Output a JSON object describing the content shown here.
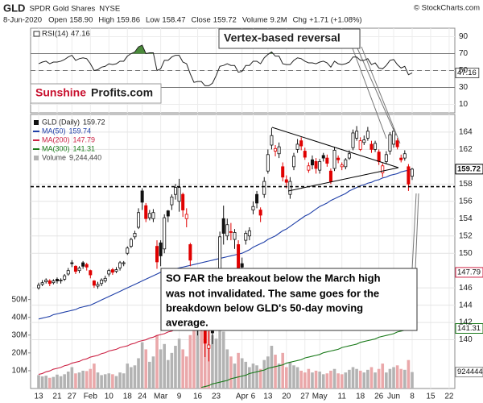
{
  "chart_data": {
    "type": "candlestick",
    "header": {
      "symbol": "GLD",
      "name": "SPDR Gold Shares",
      "exchange": "NYSE",
      "copyright": "© StockCharts.com",
      "date": "8-Jun-2020",
      "fields": [
        {
          "label": "Open",
          "value": "158.90"
        },
        {
          "label": "High",
          "value": "159.86"
        },
        {
          "label": "Low",
          "value": "158.47"
        },
        {
          "label": "Close",
          "value": "159.72"
        },
        {
          "label": "Volume",
          "value": "9.2M"
        },
        {
          "label": "Chg",
          "value": "+1.71 (+1.08%)"
        }
      ]
    },
    "legend_label": "GLD (Daily)",
    "categories": [
      "13",
      null,
      null,
      null,
      null,
      "21",
      null,
      null,
      null,
      "27",
      null,
      null,
      null,
      null,
      "Feb",
      null,
      null,
      null,
      null,
      "10",
      null,
      null,
      null,
      null,
      "18",
      null,
      null,
      null,
      "24",
      null,
      null,
      null,
      null,
      "Mar",
      null,
      null,
      null,
      null,
      "9",
      null,
      null,
      null,
      null,
      "16",
      null,
      null,
      null,
      null,
      "23",
      null,
      null,
      null,
      null,
      null,
      null,
      "Apr",
      null,
      null,
      "6",
      null,
      null,
      null,
      "13",
      null,
      null,
      null,
      null,
      "20",
      null,
      null,
      null,
      null,
      "27",
      null,
      null,
      null,
      "May",
      null,
      null,
      null,
      null,
      null,
      "11",
      null,
      null,
      null,
      null,
      "18",
      null,
      null,
      null,
      null,
      "26",
      null,
      null,
      null,
      "Jun",
      null,
      null,
      null,
      null,
      "8",
      null,
      null,
      null,
      null,
      "15",
      null,
      null,
      null,
      null,
      "22"
    ],
    "open": [
      146.0,
      146.4,
      146.7,
      146.8,
      146.6,
      147.0,
      146.8,
      147.0,
      147.6,
      148.9,
      148.5,
      148.0,
      148.9,
      148.7,
      148.0,
      146.8,
      146.2,
      146.5,
      146.8,
      147.6,
      148.1,
      147.9,
      148.3,
      148.8,
      150.0,
      150.8,
      151.9,
      153.0,
      157.2,
      155.5,
      154.1,
      154.0,
      150.8,
      151.2,
      150.5,
      154.9,
      155.6,
      156.8,
      156.0,
      156.8,
      154.0,
      151.0,
      147.0,
      142.0,
      143.0,
      141.9,
      139.0,
      141.8,
      144.0,
      147.8,
      154.0,
      152.0,
      152.5,
      151.6,
      151.0,
      148.8,
      151.5,
      152.0,
      155.0,
      156.8,
      155.0,
      156.8,
      159.5,
      162.5,
      161.8,
      161.5,
      160.0,
      158.5,
      156.8,
      160.0,
      162.0,
      163.0,
      161.8,
      159.6,
      160.8,
      160.6,
      159.6,
      161.3,
      161.0,
      159.5,
      159.8,
      161.0,
      160.0,
      160.0,
      161.0,
      162.2,
      163.3,
      162.0,
      162.8,
      163.3,
      162.6,
      162.0,
      161.7,
      159.3,
      160.6,
      161.8,
      162.6,
      163.0,
      161.0,
      161.0,
      160.0,
      158.9,
      null,
      null,
      null,
      null,
      null,
      null,
      null,
      null,
      null,
      null
    ],
    "high": [
      146.6,
      146.9,
      147.1,
      147.0,
      147.0,
      147.2,
      147.1,
      147.6,
      148.3,
      149.2,
      148.6,
      148.5,
      149.1,
      148.9,
      148.1,
      146.9,
      146.7,
      147.1,
      147.4,
      148.2,
      148.3,
      148.4,
      149.1,
      149.1,
      150.8,
      151.8,
      152.6,
      155.2,
      157.5,
      155.8,
      155.0,
      155.1,
      151.5,
      151.5,
      154.5,
      155.0,
      156.8,
      158.0,
      158.6,
      157.0,
      155.2,
      151.2,
      147.5,
      146.0,
      146.5,
      142.5,
      141.0,
      143.0,
      146.0,
      152.5,
      155.5,
      154.0,
      153.5,
      152.8,
      151.5,
      149.5,
      152.6,
      153.0,
      156.0,
      157.2,
      155.3,
      158.8,
      162.0,
      164.5,
      162.5,
      162.8,
      160.5,
      159.0,
      158.8,
      161.6,
      163.2,
      163.4,
      162.2,
      160.5,
      161.3,
      161.0,
      160.9,
      161.6,
      161.4,
      159.8,
      162.3,
      161.3,
      160.5,
      161.0,
      161.9,
      164.3,
      164.7,
      163.4,
      163.6,
      164.6,
      163.0,
      163.0,
      162.0,
      160.4,
      161.8,
      164.0,
      164.5,
      163.3,
      161.4,
      161.9,
      160.3,
      159.86,
      null,
      null,
      null,
      null,
      null,
      null,
      null,
      null,
      null,
      null
    ],
    "low": [
      145.8,
      146.2,
      146.5,
      146.2,
      146.4,
      146.5,
      146.5,
      146.8,
      147.4,
      148.4,
      147.6,
      147.7,
      148.2,
      148.0,
      147.1,
      146.0,
      145.9,
      146.2,
      146.6,
      147.3,
      147.5,
      147.7,
      148.0,
      148.5,
      149.8,
      150.6,
      151.6,
      152.8,
      155.0,
      153.6,
      153.8,
      153.6,
      148.2,
      148.5,
      150.0,
      153.6,
      155.0,
      156.2,
      154.8,
      154.2,
      153.0,
      148.5,
      141.5,
      140.5,
      141.0,
      138.0,
      137.5,
      139.5,
      142.5,
      147.0,
      151.0,
      151.5,
      151.5,
      150.5,
      147.5,
      147.5,
      151.0,
      151.5,
      154.5,
      155.2,
      153.6,
      156.4,
      159.2,
      162.0,
      161.2,
      161.0,
      158.3,
      157.5,
      156.3,
      159.6,
      161.6,
      161.9,
      160.8,
      159.3,
      159.7,
      159.2,
      159.2,
      160.6,
      160.0,
      158.0,
      159.5,
      160.4,
      159.6,
      159.7,
      160.8,
      161.9,
      163.0,
      161.8,
      162.5,
      163.0,
      161.6,
      161.7,
      160.2,
      158.8,
      160.3,
      161.4,
      162.2,
      162.0,
      160.5,
      160.7,
      157.2,
      158.47,
      null,
      null,
      null,
      null,
      null,
      null,
      null,
      null,
      null,
      null
    ],
    "close": [
      146.3,
      146.6,
      146.9,
      146.5,
      146.8,
      146.8,
      146.9,
      147.4,
      148.0,
      148.8,
      147.9,
      148.3,
      148.5,
      148.4,
      147.5,
      146.3,
      146.4,
      146.9,
      147.1,
      148.0,
      147.8,
      148.1,
      148.9,
      148.9,
      150.6,
      151.6,
      152.3,
      154.7,
      155.9,
      154.0,
      154.6,
      154.7,
      149.0,
      149.7,
      154.1,
      154.3,
      156.5,
      157.6,
      157.6,
      155.0,
      154.5,
      149.2,
      143.6,
      143.7,
      143.6,
      139.6,
      139.4,
      140.8,
      145.2,
      151.9,
      152.3,
      153.3,
      152.4,
      152.4,
      148.1,
      148.4,
      152.3,
      152.6,
      155.4,
      155.8,
      154.4,
      158.3,
      161.4,
      163.6,
      162.1,
      162.3,
      158.8,
      158.2,
      158.3,
      161.2,
      162.6,
      162.4,
      161.1,
      160.1,
      160.2,
      159.8,
      160.6,
      161.0,
      160.4,
      158.3,
      161.9,
      160.8,
      160.2,
      160.8,
      161.5,
      163.9,
      164.1,
      163.0,
      163.1,
      164.1,
      162.0,
      162.7,
      160.6,
      160.1,
      161.4,
      163.7,
      164.1,
      162.3,
      160.8,
      161.5,
      158.0,
      159.72,
      null,
      null,
      null,
      null,
      null,
      null,
      null,
      null,
      null,
      null
    ],
    "up_color": "#111111",
    "down_color": "#e00000",
    "ylim": [
      134.37,
      166.04
    ],
    "yticks": [
      164,
      162,
      158,
      156,
      154,
      152,
      150,
      146,
      144,
      142,
      140
    ],
    "grid": true,
    "support_level": 157.7,
    "series": [
      {
        "name": "MA(50)",
        "color": "#1f3fa8",
        "values": [
          142.4,
          142.5,
          142.6,
          142.7,
          142.9,
          143.0,
          143.1,
          143.2,
          143.3,
          143.4,
          143.5,
          143.7,
          143.8,
          143.9,
          144.0,
          144.2,
          144.4,
          144.6,
          144.8,
          145.0,
          145.2,
          145.4,
          145.6,
          145.8,
          146.0,
          146.2,
          146.4,
          146.6,
          146.8,
          147.0,
          147.2,
          147.4,
          147.6,
          147.8,
          147.9,
          148.0,
          148.1,
          148.2,
          148.3,
          148.4,
          148.5,
          148.6,
          148.7,
          148.8,
          148.9,
          149.0,
          149.1,
          149.2,
          149.3,
          149.4,
          149.5,
          149.6,
          149.7,
          149.8,
          149.9,
          150.0,
          150.2,
          150.4,
          150.7,
          150.9,
          151.1,
          151.3,
          151.6,
          151.8,
          152.0,
          152.3,
          152.6,
          152.8,
          153.1,
          153.4,
          153.7,
          154.0,
          154.3,
          154.5,
          154.8,
          155.1,
          155.4,
          155.6,
          155.8,
          156.1,
          156.3,
          156.5,
          156.7,
          156.9,
          157.2,
          157.4,
          157.6,
          157.8,
          157.9,
          158.1,
          158.2,
          158.4,
          158.5,
          158.7,
          158.8,
          159.0,
          159.1,
          159.2,
          159.4,
          159.5,
          159.6,
          159.74,
          null,
          null,
          null,
          null,
          null,
          null,
          null,
          null,
          null,
          null
        ]
      },
      {
        "name": "MA(200)",
        "color": "#cc2244",
        "values": [
          136.0,
          136.1,
          136.3,
          136.4,
          136.6,
          136.7,
          136.8,
          137.0,
          137.1,
          137.3,
          137.4,
          137.5,
          137.7,
          137.8,
          138.0,
          138.1,
          138.2,
          138.4,
          138.5,
          138.7,
          138.8,
          138.9,
          139.1,
          139.2,
          139.3,
          139.5,
          139.6,
          139.8,
          139.9,
          140.0,
          140.2,
          140.3,
          140.5,
          140.6,
          140.7,
          140.9,
          141.0,
          141.2,
          141.3,
          141.4,
          141.6,
          141.7,
          141.9,
          142.0,
          142.1,
          142.2,
          142.3,
          142.4,
          142.5,
          142.6,
          142.7,
          142.8,
          142.9,
          143.0,
          143.1,
          143.2,
          143.3,
          143.4,
          143.5,
          143.6,
          143.7,
          143.8,
          143.9,
          144.0,
          144.1,
          144.2,
          144.3,
          144.4,
          144.5,
          144.6,
          144.7,
          144.8,
          144.9,
          145.0,
          145.1,
          145.2,
          145.3,
          145.4,
          145.5,
          145.6,
          145.7,
          145.8,
          145.9,
          146.0,
          146.1,
          146.2,
          146.3,
          146.4,
          146.5,
          146.6,
          146.7,
          146.8,
          146.9,
          147.0,
          147.1,
          147.2,
          147.3,
          147.4,
          147.5,
          147.6,
          147.7,
          147.79,
          null,
          null,
          null,
          null,
          null,
          null,
          null,
          null,
          null,
          null
        ]
      },
      {
        "name": "MA(300)",
        "color": "#1a7a1a",
        "values": [
          null,
          null,
          null,
          null,
          null,
          null,
          null,
          null,
          null,
          null,
          null,
          null,
          null,
          null,
          null,
          null,
          null,
          null,
          null,
          null,
          null,
          null,
          null,
          null,
          null,
          null,
          null,
          null,
          null,
          null,
          null,
          null,
          null,
          null,
          null,
          null,
          null,
          null,
          null,
          null,
          null,
          null,
          null,
          null,
          134.5,
          134.6,
          134.7,
          134.9,
          135.0,
          135.1,
          135.2,
          135.3,
          135.5,
          135.6,
          135.7,
          135.8,
          135.9,
          136.1,
          136.2,
          136.3,
          136.4,
          136.5,
          136.7,
          136.8,
          136.9,
          137.0,
          137.1,
          137.3,
          137.4,
          137.5,
          137.6,
          137.7,
          137.9,
          138.0,
          138.1,
          138.2,
          138.3,
          138.5,
          138.6,
          138.7,
          138.8,
          138.9,
          139.1,
          139.2,
          139.3,
          139.4,
          139.5,
          139.7,
          139.8,
          139.9,
          140.0,
          140.1,
          140.3,
          140.4,
          140.5,
          140.6,
          140.7,
          140.9,
          141.0,
          141.1,
          141.2,
          141.31,
          null,
          null,
          null,
          null,
          null,
          null,
          null,
          null,
          null,
          null
        ]
      }
    ],
    "volume": {
      "name": "Volume",
      "up_color": "#b3b3b3",
      "down_color": "#eaa8aa",
      "legend_value": {
        "value": 9244440,
        "label": "9,244,440"
      },
      "values": [
        7500000,
        6800000,
        7200000,
        6000000,
        6500000,
        7800000,
        6900000,
        8000000,
        9500000,
        12000000,
        8500000,
        9000000,
        10000000,
        9800000,
        11000000,
        14000000,
        9000000,
        7500000,
        8000000,
        8500000,
        8000000,
        7000000,
        9000000,
        8500000,
        14000000,
        12000000,
        13000000,
        17000000,
        26000000,
        22000000,
        15000000,
        18000000,
        30000000,
        22000000,
        25000000,
        16000000,
        20000000,
        24000000,
        28000000,
        22000000,
        18000000,
        30000000,
        45000000,
        35000000,
        40000000,
        52000000,
        35000000,
        30000000,
        28000000,
        40000000,
        32000000,
        22000000,
        18000000,
        14000000,
        20000000,
        17000000,
        15000000,
        12000000,
        14000000,
        13000000,
        11000000,
        16000000,
        18000000,
        24000000,
        19000000,
        14000000,
        20000000,
        12000000,
        15000000,
        13000000,
        12000000,
        10000000,
        9000000,
        11000000,
        9000000,
        10000000,
        9500000,
        8000000,
        8500000,
        10000000,
        11000000,
        8500000,
        8000000,
        9000000,
        10500000,
        12000000,
        11000000,
        10000000,
        9000000,
        10500000,
        12000000,
        9000000,
        11000000,
        14000000,
        9000000,
        11000000,
        12000000,
        13000000,
        11000000,
        10500000,
        16000000,
        9244440,
        null,
        null,
        null,
        null,
        null,
        null,
        null,
        null,
        null,
        null
      ],
      "ylim": [
        0,
        154000000
      ],
      "yticks": [
        {
          "value": 10000000,
          "label": "10M"
        },
        {
          "value": 20000000,
          "label": "20M"
        },
        {
          "value": 30000000,
          "label": "30M"
        },
        {
          "value": 40000000,
          "label": "40M"
        },
        {
          "value": 50000000,
          "label": "50M"
        }
      ]
    },
    "rsi": {
      "name": "RSI(14)",
      "color": "#222222",
      "fill_color": "#4a8a3a",
      "values": [
        58,
        60,
        61,
        58,
        60,
        60,
        61,
        63,
        66,
        68,
        62,
        64,
        65,
        64,
        58,
        50,
        51,
        54,
        55,
        58,
        57,
        58,
        61,
        61,
        67,
        70,
        72,
        78,
        80,
        70,
        71,
        71,
        50,
        52,
        62,
        62,
        66,
        68,
        68,
        60,
        58,
        46,
        36,
        37,
        37,
        32,
        32,
        35,
        44,
        55,
        56,
        58,
        56,
        56,
        48,
        49,
        56,
        56,
        61,
        61,
        58,
        65,
        69,
        72,
        67,
        67,
        58,
        57,
        57,
        62,
        65,
        64,
        61,
        59,
        59,
        58,
        60,
        61,
        59,
        54,
        61,
        58,
        57,
        58,
        60,
        66,
        66,
        62,
        62,
        64,
        57,
        59,
        53,
        52,
        56,
        62,
        63,
        57,
        53,
        55,
        45,
        47.16,
        null,
        null,
        null,
        null,
        null,
        null,
        null,
        null,
        null,
        null
      ],
      "ylim": [
        0,
        100
      ],
      "yticks": [
        90,
        70,
        50,
        30,
        10
      ],
      "levels": [
        70,
        30
      ],
      "midline": 50
    },
    "annotations": {
      "vertex": "Vertex-based reversal",
      "logo": [
        "Sunshine",
        "Profits.com"
      ],
      "note": [
        "SO FAR the breakout below the March high",
        "was not invalidated. The same goes for the",
        "breakdown below GLD's 50-day moving",
        "average."
      ]
    }
  }
}
